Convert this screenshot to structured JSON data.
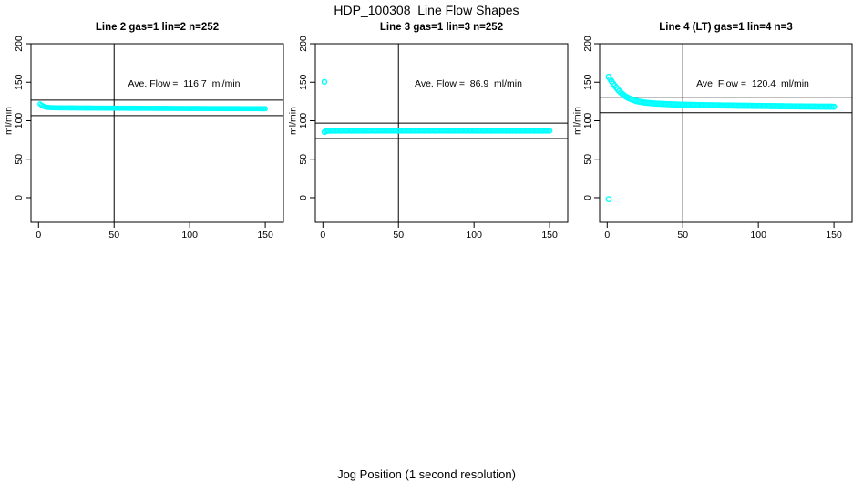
{
  "title": "HDP_100308  Line Flow Shapes",
  "xlabel": "Jog Position (1 second resolution)",
  "accent_color": "#00FFFF",
  "line_color": "#000000",
  "chart_data": [
    {
      "type": "scatter",
      "title": "Line 2 gas=1 lin=2 n=252",
      "ylabel": "ml/min",
      "annotation": "Ave. Flow =  116.7  ml/min",
      "ave_flow_ml_min": 116.7,
      "n_points": 252,
      "x_ticks": [
        0,
        50,
        100,
        150
      ],
      "y_ticks": [
        0,
        50,
        100,
        150,
        200
      ],
      "xlim": [
        -5,
        162
      ],
      "ylim": [
        -32,
        200
      ],
      "vline_x": 50,
      "hlines": [
        126.7,
        106.7
      ],
      "marker_r": 2.2,
      "sample_step": 1,
      "anchors": [
        [
          1,
          121.8
        ],
        [
          2,
          120.2
        ],
        [
          3,
          119.0
        ],
        [
          4,
          118.2
        ],
        [
          5,
          117.7
        ],
        [
          6,
          117.4
        ],
        [
          8,
          117.0
        ],
        [
          12,
          116.8
        ],
        [
          30,
          116.5
        ],
        [
          60,
          116.2
        ],
        [
          100,
          115.9
        ],
        [
          150,
          115.6
        ]
      ],
      "outliers": []
    },
    {
      "type": "scatter",
      "title": "Line 3 gas=1 lin=3 n=252",
      "ylabel": "ml/min",
      "annotation": "Ave. Flow =  86.9  ml/min",
      "ave_flow_ml_min": 86.9,
      "n_points": 252,
      "x_ticks": [
        0,
        50,
        100,
        150
      ],
      "y_ticks": [
        0,
        50,
        100,
        150,
        200
      ],
      "xlim": [
        -5,
        162
      ],
      "ylim": [
        -32,
        200
      ],
      "vline_x": 50,
      "hlines": [
        96.9,
        76.9
      ],
      "marker_r": 2.5,
      "sample_step": 1,
      "anchors": [
        [
          1,
          85.2
        ],
        [
          2,
          86.3
        ],
        [
          3,
          86.8
        ],
        [
          6,
          87.0
        ],
        [
          40,
          87.1
        ],
        [
          150,
          87.0
        ]
      ],
      "outliers": [
        [
          1,
          150.5
        ]
      ]
    },
    {
      "type": "scatter",
      "title": "Line 4 (LT) gas=1 lin=4 n=3",
      "ylabel": "ml/min",
      "annotation": "Ave. Flow =  120.4  ml/min",
      "ave_flow_ml_min": 120.4,
      "n_points": 3,
      "x_ticks": [
        0,
        50,
        100,
        150
      ],
      "y_ticks": [
        0,
        50,
        100,
        150,
        200
      ],
      "xlim": [
        -5,
        162
      ],
      "ylim": [
        -32,
        200
      ],
      "vline_x": 50,
      "hlines": [
        130.4,
        110.4
      ],
      "marker_r": 2.7,
      "sample_step": 1,
      "anchors": [
        [
          1,
          157.0
        ],
        [
          2,
          154.0
        ],
        [
          3,
          151.0
        ],
        [
          4,
          148.0
        ],
        [
          5,
          145.5
        ],
        [
          6,
          143.0
        ],
        [
          7,
          140.5
        ],
        [
          8,
          138.5
        ],
        [
          9,
          136.5
        ],
        [
          10,
          134.8
        ],
        [
          12,
          131.8
        ],
        [
          14,
          129.5
        ],
        [
          16,
          127.8
        ],
        [
          18,
          126.3
        ],
        [
          20,
          125.2
        ],
        [
          24,
          123.8
        ],
        [
          28,
          122.9
        ],
        [
          32,
          122.3
        ],
        [
          40,
          121.5
        ],
        [
          50,
          120.8
        ],
        [
          70,
          120.0
        ],
        [
          100,
          119.2
        ],
        [
          130,
          118.5
        ],
        [
          150,
          118.2
        ]
      ],
      "outliers": [
        [
          1,
          -2.0
        ]
      ]
    }
  ]
}
